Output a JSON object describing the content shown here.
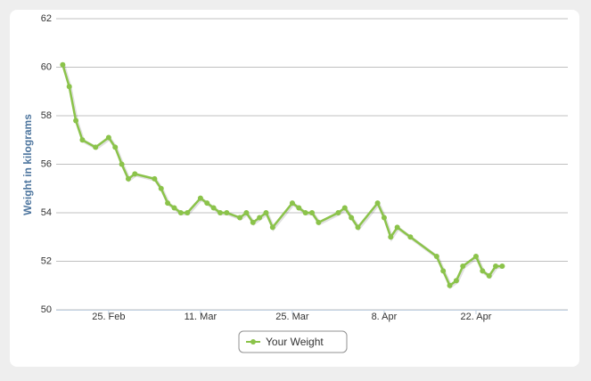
{
  "chart_data": {
    "type": "line",
    "ylabel": "Weight in kilograms",
    "x": [
      "18. Feb",
      "19. Feb",
      "20. Feb",
      "21. Feb",
      "23. Feb",
      "25. Feb",
      "26. Feb",
      "27. Feb",
      "28. Feb",
      "1. Mar",
      "4. Mar",
      "5. Mar",
      "6. Mar",
      "7. Mar",
      "8. Mar",
      "9. Mar",
      "11. Mar",
      "12. Mar",
      "13. Mar",
      "14. Mar",
      "15. Mar",
      "17. Mar",
      "18. Mar",
      "19. Mar",
      "20. Mar",
      "21. Mar",
      "22. Mar",
      "25. Mar",
      "26. Mar",
      "27. Mar",
      "28. Mar",
      "29. Mar",
      "1. Apr",
      "2. Apr",
      "3. Apr",
      "4. Apr",
      "7. Apr",
      "8. Apr",
      "9. Apr",
      "10. Apr",
      "12. Apr",
      "16. Apr",
      "17. Apr",
      "18. Apr",
      "19. Apr",
      "20. Apr",
      "22. Apr",
      "23. Apr",
      "24. Apr",
      "25. Apr",
      "26. Apr"
    ],
    "series": [
      {
        "name": "Your Weight",
        "color": "#8bc34a",
        "values": [
          60.1,
          59.2,
          57.8,
          57.0,
          56.7,
          57.1,
          56.7,
          56.0,
          55.4,
          55.6,
          55.4,
          55.0,
          54.4,
          54.2,
          54.0,
          54.0,
          54.6,
          54.4,
          54.2,
          54.0,
          54.0,
          53.8,
          54.0,
          53.6,
          53.8,
          54.0,
          53.4,
          54.4,
          54.2,
          54.0,
          54.0,
          53.6,
          54.0,
          54.2,
          53.8,
          53.4,
          54.4,
          53.8,
          53.0,
          53.4,
          53.0,
          52.2,
          51.6,
          51.0,
          51.2,
          51.8,
          52.2,
          51.6,
          51.4,
          51.8,
          51.8
        ]
      }
    ],
    "xlim": [
      "17. Feb",
      "6. May"
    ],
    "xticks": [
      "25. Feb",
      "11. Mar",
      "25. Mar",
      "8. Apr",
      "22. Apr"
    ],
    "ylim": [
      50,
      62
    ],
    "yticks": [
      50,
      52,
      54,
      56,
      58,
      60,
      62
    ],
    "grid": true
  }
}
